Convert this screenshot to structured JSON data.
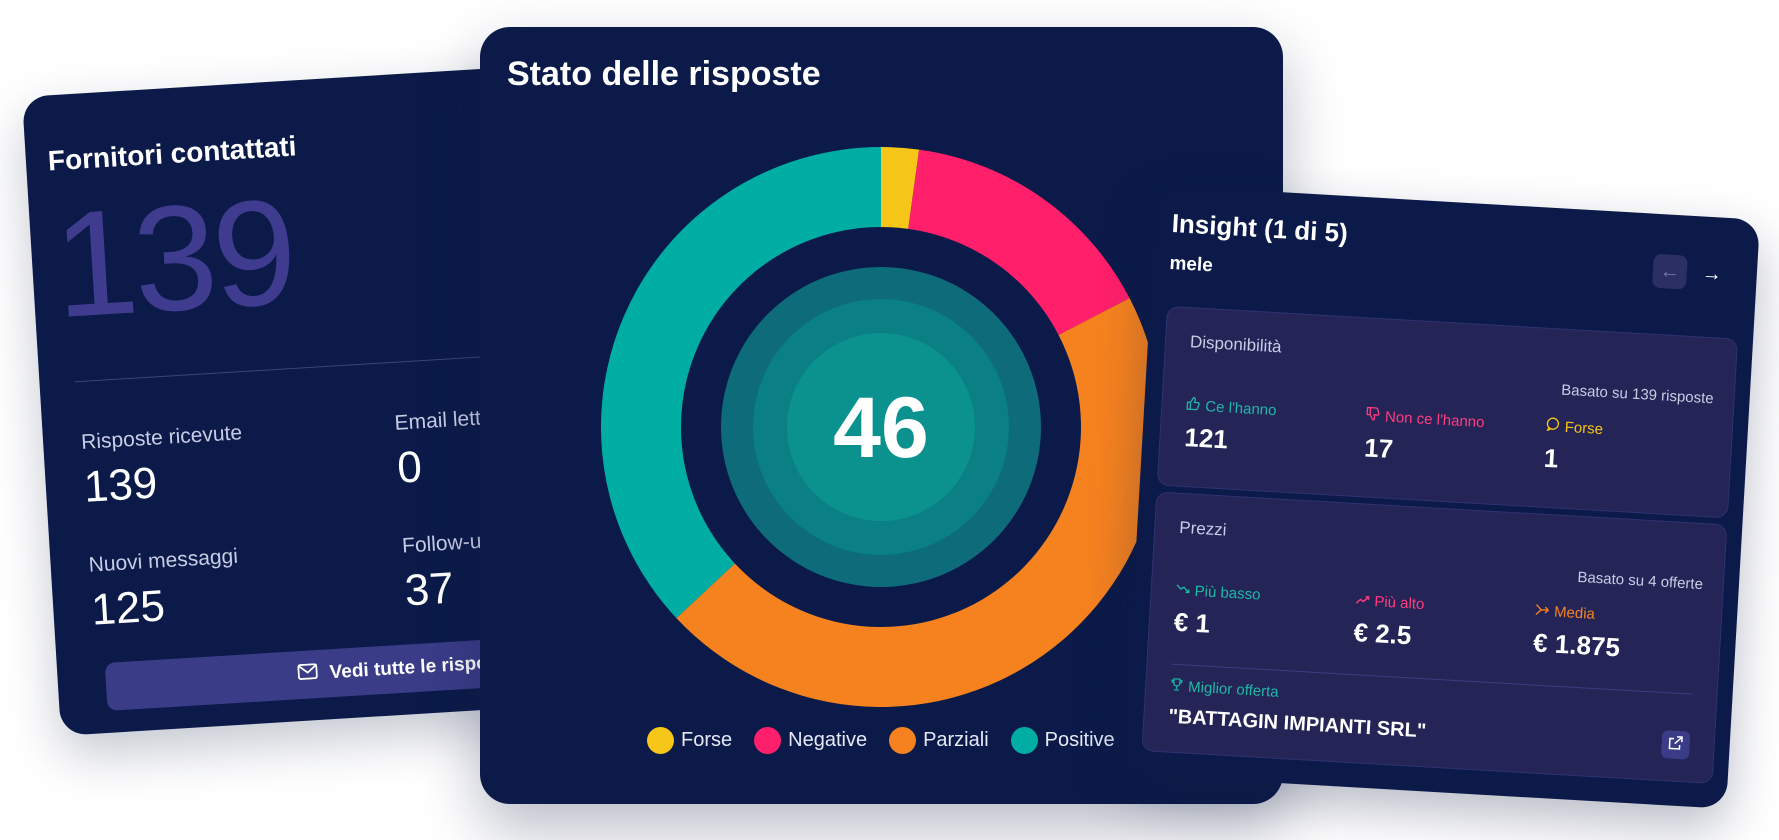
{
  "fornitori": {
    "title": "Fornitori contattati",
    "total": "139",
    "stats": [
      {
        "label": "Risposte ricevute",
        "value": "139"
      },
      {
        "label": "Email lette",
        "value": "0"
      },
      {
        "label": "Nuovi messaggi",
        "value": "125"
      },
      {
        "label": "Follow-up",
        "value": "37"
      }
    ],
    "button_label": "Vedi tutte le risposte"
  },
  "stato": {
    "title": "Stato delle risposte",
    "center_value": "46",
    "legend": [
      {
        "label": "Forse",
        "color": "#f5c518"
      },
      {
        "label": "Negative",
        "color": "#ff1f6b"
      },
      {
        "label": "Parziali",
        "color": "#f6821f"
      },
      {
        "label": "Positive",
        "color": "#00ada3"
      }
    ]
  },
  "chart_data": {
    "type": "pie",
    "categories": [
      "Forse",
      "Negative",
      "Parziali",
      "Positive"
    ],
    "values": [
      1,
      7,
      21,
      17
    ],
    "colors": [
      "#f5c518",
      "#ff1f6b",
      "#f6821f",
      "#00ada3"
    ],
    "title": "Stato delle risposte",
    "center_label": "46",
    "legend_position": "bottom"
  },
  "insight": {
    "title": "Insight (1 di 5)",
    "subtitle": "mele",
    "availability": {
      "title": "Disponibilità",
      "note": "Basato su 139 risposte",
      "metrics": [
        {
          "label": "Ce l'hanno",
          "value": "121",
          "color": "#1fb8a6",
          "icon": "thumbs-up-icon"
        },
        {
          "label": "Non ce l'hanno",
          "value": "17",
          "color": "#ff3d7f",
          "icon": "thumbs-down-icon"
        },
        {
          "label": "Forse",
          "value": "1",
          "color": "#f5c518",
          "icon": "message-question-icon"
        }
      ]
    },
    "prices": {
      "title": "Prezzi",
      "note": "Basato su 4 offerte",
      "metrics": [
        {
          "label": "Più basso",
          "value": "€ 1",
          "color": "#1fb8a6",
          "icon": "trend-down-icon"
        },
        {
          "label": "Più alto",
          "value": "€ 2.5",
          "color": "#ff3d7f",
          "icon": "trend-up-icon"
        },
        {
          "label": "Media",
          "value": "€ 1.875",
          "color": "#f6821f",
          "icon": "split-arrows-icon"
        }
      ],
      "best_label": "Miglior offerta",
      "best_value": "\"BATTAGIN IMPIANTI SRL\""
    }
  }
}
